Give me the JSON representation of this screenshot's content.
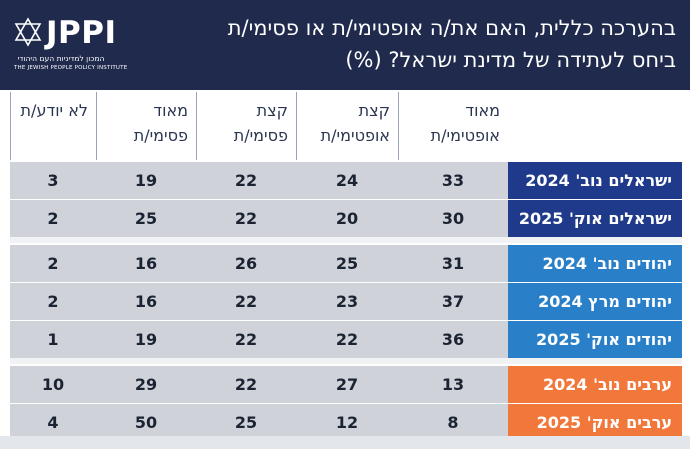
{
  "header": {
    "logo_text": "JPPI",
    "logo_sub_he": "המכון למדיניות העם היהודי",
    "logo_sub_en": "THE JEWISH PEOPLE POLICY INSTITUTE",
    "title_line1": "בהערכה כללית, האם את/ה אופטימי/ת או פסימי/ת",
    "title_line2": "ביחס לעתידה של מדינת ישראל? (%)"
  },
  "colors": {
    "header_bg": "#1f2a4d",
    "israelis": "#1f3a8a",
    "jews": "#2a80c8",
    "arabs": "#f2773a",
    "cell_bg": "#cfd3d9"
  },
  "chart_data": {
    "type": "table",
    "columns": [
      {
        "key": "very_optimistic",
        "line1": "מאוד",
        "line2": "אופטימי/ת"
      },
      {
        "key": "somewhat_optimistic",
        "line1": "קצת",
        "line2": "אופטימי/ת"
      },
      {
        "key": "somewhat_pessimistic",
        "line1": "קצת",
        "line2": "פסימי/ת"
      },
      {
        "key": "very_pessimistic",
        "line1": "מאוד",
        "line2": "פסימי/ת"
      },
      {
        "key": "dont_know",
        "line1": "לא יודע/ת",
        "line2": ""
      }
    ],
    "rows": [
      {
        "group": "israelis",
        "label": "ישראלים נוב' 2024",
        "values": [
          33,
          24,
          22,
          19,
          3
        ]
      },
      {
        "group": "israelis",
        "label": "ישראלים אוק' 2025",
        "values": [
          30,
          20,
          22,
          25,
          2
        ]
      },
      {
        "group": "jews",
        "label": "יהודים נוב' 2024",
        "values": [
          31,
          25,
          26,
          16,
          2
        ]
      },
      {
        "group": "jews",
        "label": "יהודים מרץ 2024",
        "values": [
          37,
          23,
          22,
          16,
          2
        ]
      },
      {
        "group": "jews",
        "label": "יהודים אוק' 2025",
        "values": [
          36,
          22,
          22,
          19,
          1
        ]
      },
      {
        "group": "arabs",
        "label": "ערבים נוב' 2024",
        "values": [
          13,
          27,
          22,
          29,
          10
        ]
      },
      {
        "group": "arabs",
        "label": "ערבים אוק' 2025",
        "values": [
          8,
          12,
          25,
          50,
          4
        ]
      }
    ]
  }
}
